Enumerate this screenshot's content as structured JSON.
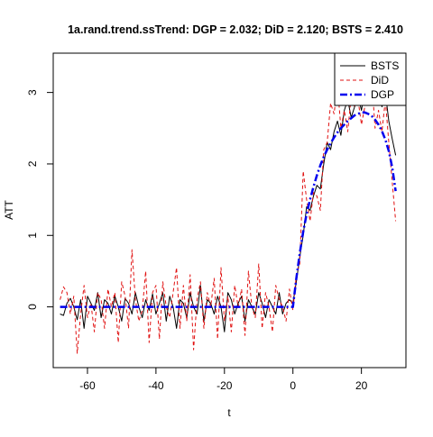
{
  "chart_data": {
    "type": "line",
    "title": "1a.rand.trend.ssTrend: DGP = 2.032; DiD = 2.120;  BSTS = 2.410",
    "xlabel": "t",
    "ylabel": "ATT",
    "xlim": [
      -70,
      33
    ],
    "ylim": [
      -0.85,
      3.55
    ],
    "x_ticks": [
      -60,
      -40,
      -20,
      0,
      20
    ],
    "y_ticks": [
      0,
      1,
      2,
      3
    ],
    "grid": false,
    "legend_position": "top-right",
    "x": [
      -68,
      -67,
      -66,
      -65,
      -64,
      -63,
      -62,
      -61,
      -60,
      -59,
      -58,
      -57,
      -56,
      -55,
      -54,
      -53,
      -52,
      -51,
      -50,
      -49,
      -48,
      -47,
      -46,
      -45,
      -44,
      -43,
      -42,
      -41,
      -40,
      -39,
      -38,
      -37,
      -36,
      -35,
      -34,
      -33,
      -32,
      -31,
      -30,
      -29,
      -28,
      -27,
      -26,
      -25,
      -24,
      -23,
      -22,
      -21,
      -20,
      -19,
      -18,
      -17,
      -16,
      -15,
      -14,
      -13,
      -12,
      -11,
      -10,
      -9,
      -8,
      -7,
      -6,
      -5,
      -4,
      -3,
      -2,
      -1,
      0,
      1,
      2,
      3,
      4,
      5,
      6,
      7,
      8,
      9,
      10,
      11,
      12,
      13,
      14,
      15,
      16,
      17,
      18,
      19,
      20,
      21,
      22,
      23,
      24,
      25,
      26,
      27,
      28,
      29,
      30
    ],
    "series": [
      {
        "name": "BSTS",
        "color": "#000000",
        "style": "solid",
        "width": 1,
        "values": [
          -0.1,
          -0.12,
          0.05,
          0.12,
          0.0,
          -0.18,
          0.1,
          -0.3,
          0.15,
          0.05,
          -0.05,
          0.2,
          -0.15,
          0.1,
          0.05,
          -0.1,
          0.15,
          0.0,
          -0.2,
          0.12,
          0.05,
          -0.1,
          0.2,
          0.0,
          -0.15,
          0.1,
          -0.05,
          0.18,
          -0.1,
          0.05,
          0.2,
          -0.2,
          0.15,
          0.0,
          -0.3,
          0.1,
          0.05,
          -0.15,
          0.2,
          0.0,
          -0.1,
          0.3,
          -0.2,
          0.1,
          0.05,
          -0.1,
          0.15,
          0.0,
          -0.35,
          0.2,
          0.1,
          -0.1,
          0.05,
          0.15,
          -0.2,
          0.1,
          0.0,
          -0.1,
          0.2,
          0.05,
          -0.15,
          0.1,
          0.0,
          -0.1,
          0.2,
          -0.1,
          0.05,
          0.1,
          0.05,
          0.35,
          0.7,
          1.0,
          1.4,
          1.35,
          1.55,
          1.7,
          1.65,
          2.0,
          2.3,
          2.2,
          2.45,
          2.6,
          2.4,
          2.75,
          2.9,
          2.65,
          2.8,
          2.95,
          2.75,
          3.05,
          2.9,
          3.2,
          2.95,
          3.05,
          2.8,
          3.0,
          2.6,
          2.35,
          2.12
        ]
      },
      {
        "name": "DiD",
        "color": "#e01010",
        "style": "dashed",
        "width": 1,
        "values": [
          0.1,
          0.28,
          0.2,
          -0.1,
          0.15,
          -0.65,
          -0.1,
          0.3,
          -0.15,
          0.05,
          -0.35,
          0.2,
          0.1,
          -0.3,
          0.25,
          0.0,
          0.2,
          -0.5,
          0.35,
          0.15,
          -0.3,
          0.8,
          0.1,
          -0.2,
          -0.05,
          0.5,
          -0.5,
          0.2,
          0.3,
          -0.45,
          0.35,
          0.0,
          -0.15,
          0.2,
          0.55,
          -0.3,
          0.3,
          -0.2,
          0.45,
          -0.6,
          0.1,
          0.35,
          -0.3,
          0.2,
          0.0,
          0.4,
          -0.45,
          0.55,
          -0.2,
          0.15,
          -0.35,
          0.3,
          0.0,
          0.25,
          -0.4,
          0.5,
          0.0,
          -0.15,
          0.6,
          -0.3,
          0.2,
          0.0,
          -0.35,
          0.3,
          0.1,
          0.0,
          -0.2,
          0.25,
          -0.05,
          0.45,
          0.6,
          1.9,
          1.5,
          1.2,
          1.6,
          1.55,
          1.35,
          2.2,
          2.3,
          2.85,
          2.7,
          3.1,
          2.5,
          2.75,
          2.45,
          2.95,
          2.8,
          2.9,
          2.55,
          2.8,
          2.9,
          3.2,
          2.5,
          2.75,
          2.45,
          2.9,
          2.3,
          1.75,
          1.2
        ]
      },
      {
        "name": "DGP",
        "color": "#0000ee",
        "style": "dashdot",
        "width": 2.5,
        "values": [
          0,
          0,
          0,
          0,
          0,
          0,
          0,
          0,
          0,
          0,
          0,
          0,
          0,
          0,
          0,
          0,
          0,
          0,
          0,
          0,
          0,
          0,
          0,
          0,
          0,
          0,
          0,
          0,
          0,
          0,
          0,
          0,
          0,
          0,
          0,
          0,
          0,
          0,
          0,
          0,
          0,
          0,
          0,
          0,
          0,
          0,
          0,
          0,
          0,
          0,
          0,
          0,
          0,
          0,
          0,
          0,
          0,
          0,
          0,
          0,
          0,
          0,
          0,
          0,
          0,
          0,
          0,
          0,
          0,
          0.4,
          0.75,
          1.05,
          1.3,
          1.5,
          1.68,
          1.84,
          1.98,
          2.1,
          2.2,
          2.29,
          2.37,
          2.44,
          2.5,
          2.55,
          2.6,
          2.64,
          2.68,
          2.7,
          2.72,
          2.72,
          2.7,
          2.67,
          2.62,
          2.55,
          2.46,
          2.34,
          2.18,
          1.95,
          1.62
        ]
      }
    ]
  }
}
